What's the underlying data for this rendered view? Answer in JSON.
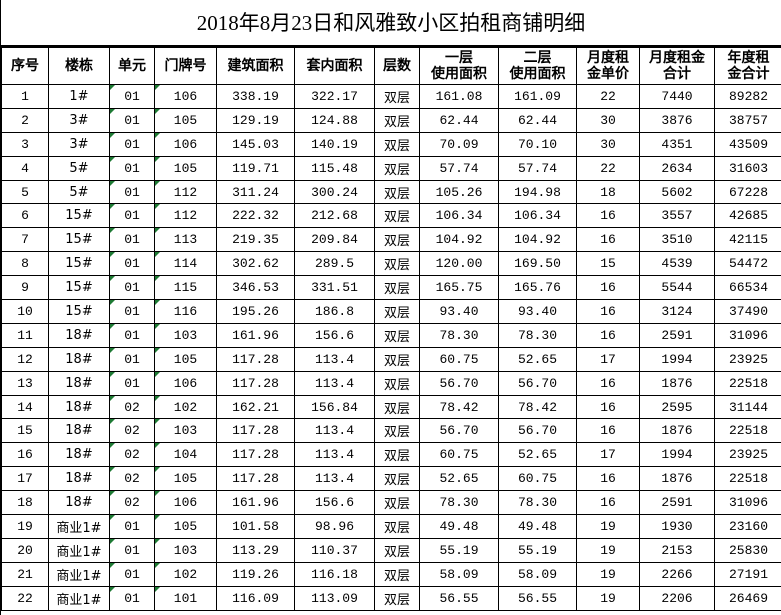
{
  "title": "2018年8月23日和风雅致小区拍租商铺明细",
  "columns": [
    "序号",
    "楼栋",
    "单元",
    "门牌号",
    "建筑面积",
    "套内面积",
    "层数",
    "一层\n使用面积",
    "二层\n使用面积",
    "月度租\n金单价",
    "月度租金\n合计",
    "年度租\n金合计"
  ],
  "rows": [
    [
      "1",
      "1#",
      "01",
      "106",
      "338.19",
      "322.17",
      "双层",
      "161.08",
      "161.09",
      "22",
      "7440",
      "89282"
    ],
    [
      "2",
      "3#",
      "01",
      "105",
      "129.19",
      "124.88",
      "双层",
      "62.44",
      "62.44",
      "30",
      "3876",
      "38757"
    ],
    [
      "3",
      "3#",
      "01",
      "106",
      "145.03",
      "140.19",
      "双层",
      "70.09",
      "70.10",
      "30",
      "4351",
      "43509"
    ],
    [
      "4",
      "5#",
      "01",
      "105",
      "119.71",
      "115.48",
      "双层",
      "57.74",
      "57.74",
      "22",
      "2634",
      "31603"
    ],
    [
      "5",
      "5#",
      "01",
      "112",
      "311.24",
      "300.24",
      "双层",
      "105.26",
      "194.98",
      "18",
      "5602",
      "67228"
    ],
    [
      "6",
      "15#",
      "01",
      "112",
      "222.32",
      "212.68",
      "双层",
      "106.34",
      "106.34",
      "16",
      "3557",
      "42685"
    ],
    [
      "7",
      "15#",
      "01",
      "113",
      "219.35",
      "209.84",
      "双层",
      "104.92",
      "104.92",
      "16",
      "3510",
      "42115"
    ],
    [
      "8",
      "15#",
      "01",
      "114",
      "302.62",
      "289.5",
      "双层",
      "120.00",
      "169.50",
      "15",
      "4539",
      "54472"
    ],
    [
      "9",
      "15#",
      "01",
      "115",
      "346.53",
      "331.51",
      "双层",
      "165.75",
      "165.76",
      "16",
      "5544",
      "66534"
    ],
    [
      "10",
      "15#",
      "01",
      "116",
      "195.26",
      "186.8",
      "双层",
      "93.40",
      "93.40",
      "16",
      "3124",
      "37490"
    ],
    [
      "11",
      "18#",
      "01",
      "103",
      "161.96",
      "156.6",
      "双层",
      "78.30",
      "78.30",
      "16",
      "2591",
      "31096"
    ],
    [
      "12",
      "18#",
      "01",
      "105",
      "117.28",
      "113.4",
      "双层",
      "60.75",
      "52.65",
      "17",
      "1994",
      "23925"
    ],
    [
      "13",
      "18#",
      "01",
      "106",
      "117.28",
      "113.4",
      "双层",
      "56.70",
      "56.70",
      "16",
      "1876",
      "22518"
    ],
    [
      "14",
      "18#",
      "02",
      "102",
      "162.21",
      "156.84",
      "双层",
      "78.42",
      "78.42",
      "16",
      "2595",
      "31144"
    ],
    [
      "15",
      "18#",
      "02",
      "103",
      "117.28",
      "113.4",
      "双层",
      "56.70",
      "56.70",
      "16",
      "1876",
      "22518"
    ],
    [
      "16",
      "18#",
      "02",
      "104",
      "117.28",
      "113.4",
      "双层",
      "60.75",
      "52.65",
      "17",
      "1994",
      "23925"
    ],
    [
      "17",
      "18#",
      "02",
      "105",
      "117.28",
      "113.4",
      "双层",
      "52.65",
      "60.75",
      "16",
      "1876",
      "22518"
    ],
    [
      "18",
      "18#",
      "02",
      "106",
      "161.96",
      "156.6",
      "双层",
      "78.30",
      "78.30",
      "16",
      "2591",
      "31096"
    ],
    [
      "19",
      "商业1#",
      "01",
      "105",
      "101.58",
      "98.96",
      "双层",
      "49.48",
      "49.48",
      "19",
      "1930",
      "23160"
    ],
    [
      "20",
      "商业1#",
      "01",
      "103",
      "113.29",
      "110.37",
      "双层",
      "55.19",
      "55.19",
      "19",
      "2153",
      "25830"
    ],
    [
      "21",
      "商业1#",
      "01",
      "102",
      "119.26",
      "116.18",
      "双层",
      "58.09",
      "58.09",
      "19",
      "2266",
      "27191"
    ],
    [
      "22",
      "商业1#",
      "01",
      "101",
      "116.09",
      "113.09",
      "双层",
      "56.55",
      "56.55",
      "19",
      "2206",
      "26469"
    ]
  ]
}
